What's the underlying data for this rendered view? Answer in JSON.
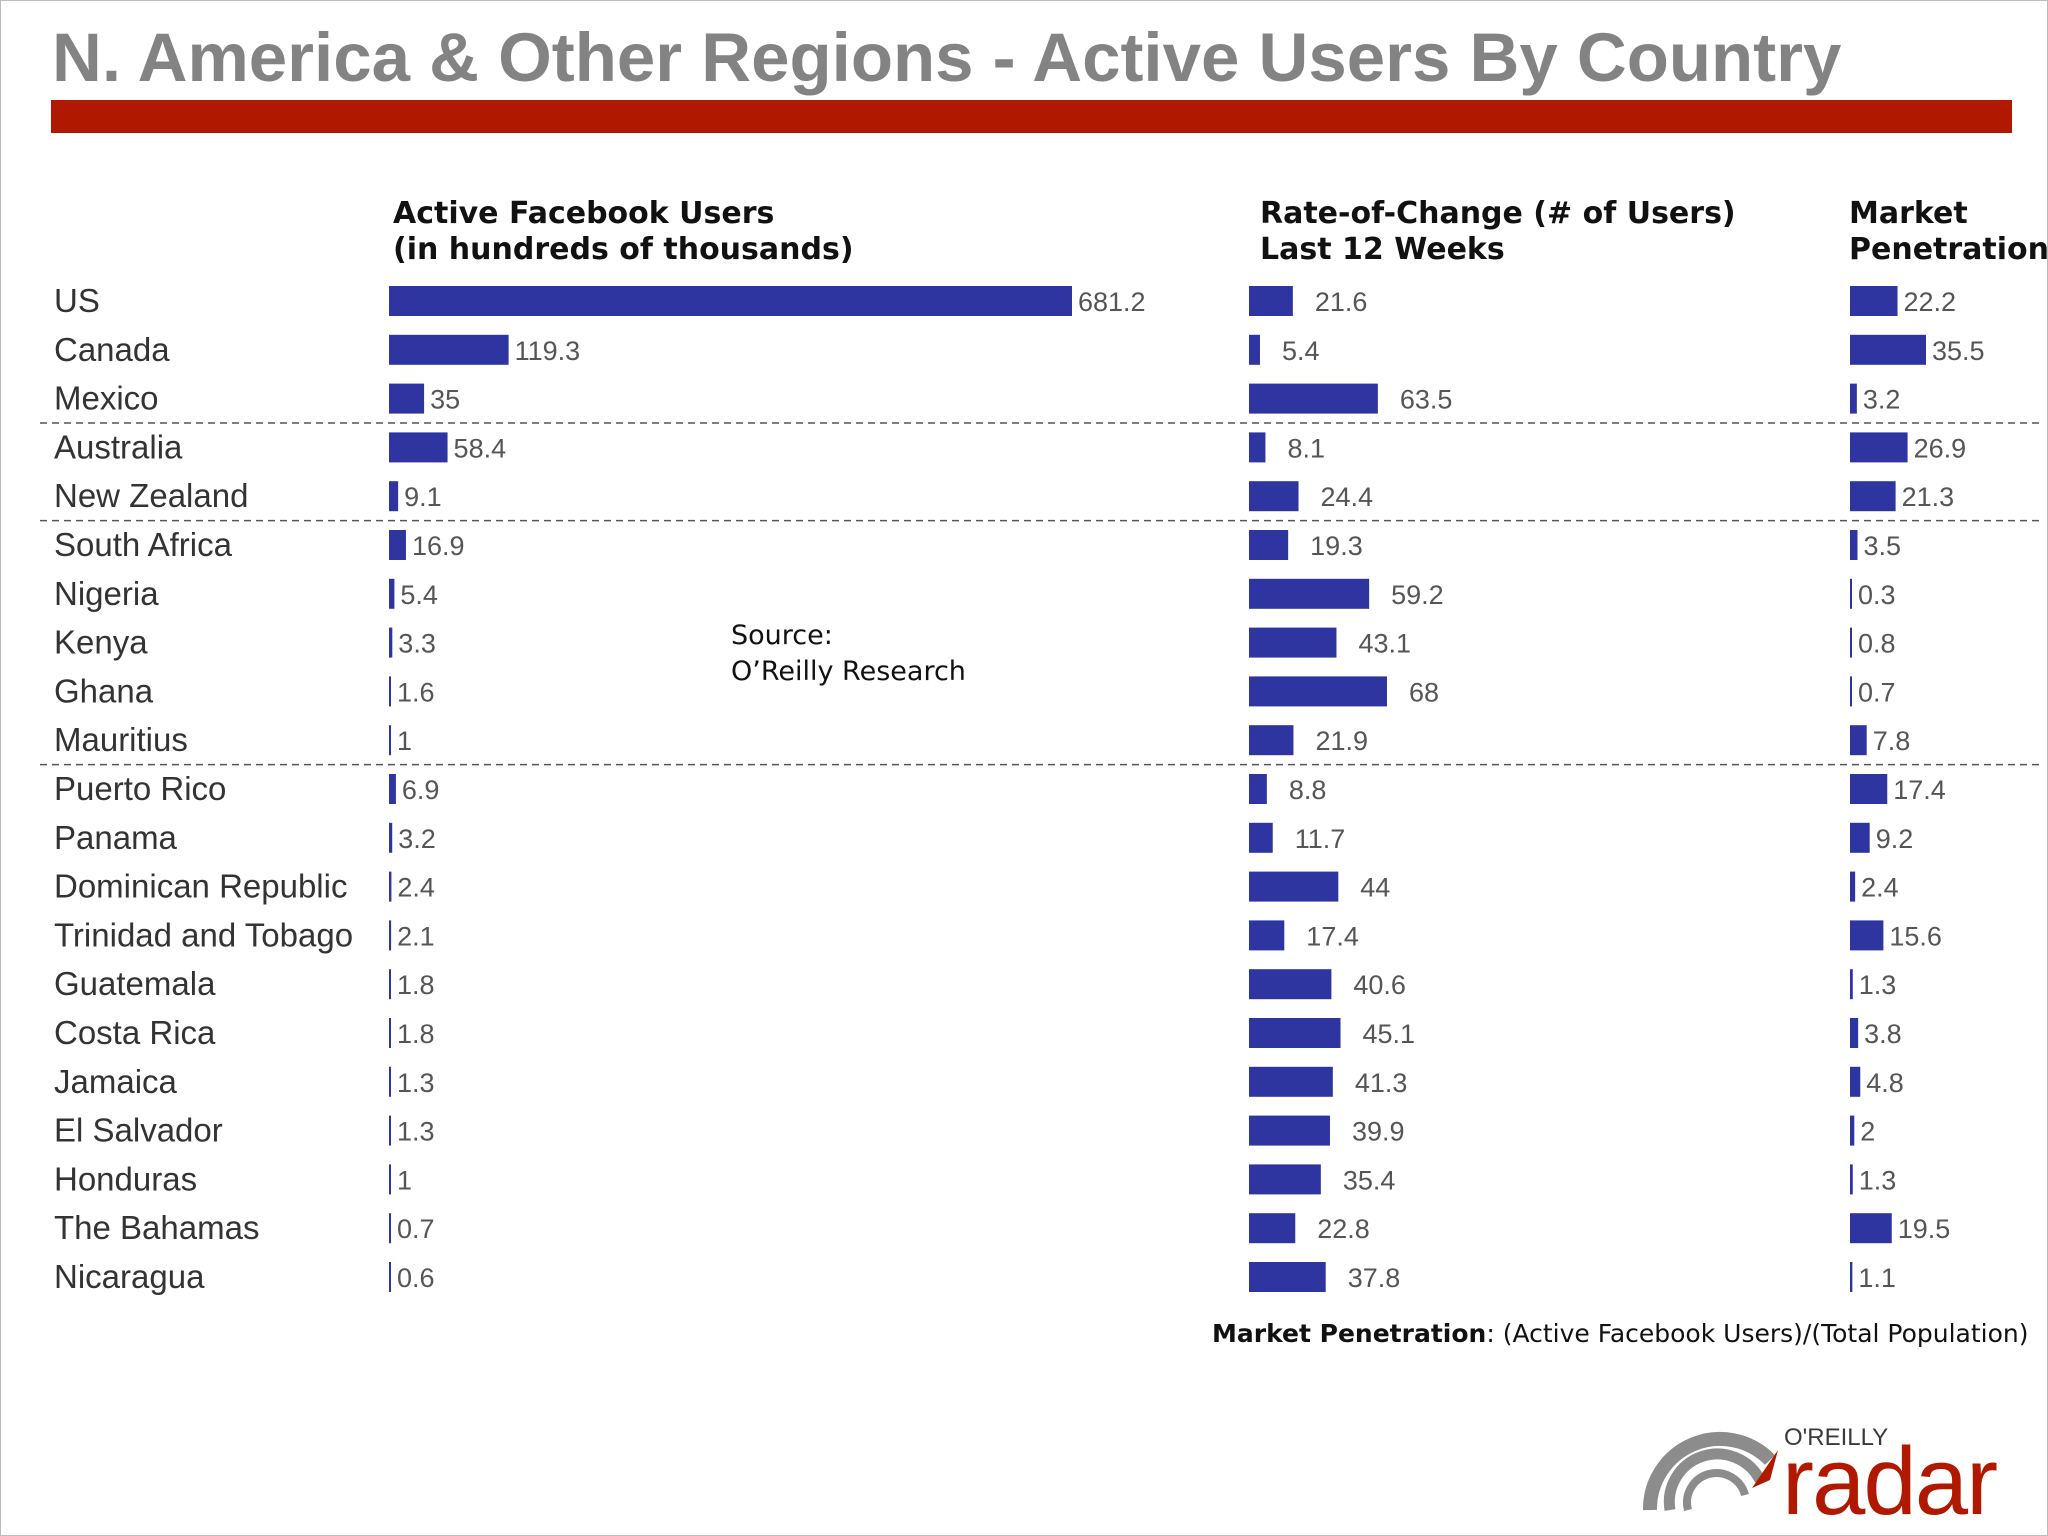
{
  "title": "N. America & Other Regions - Active Users By Country",
  "headers": {
    "users": [
      "Active Facebook Users",
      "(in hundreds of thousands)"
    ],
    "change": [
      "Rate-of-Change (# of Users)",
      "Last 12 Weeks"
    ],
    "penetration": [
      "Market",
      "Penetration"
    ]
  },
  "source": [
    "Source:",
    "O’Reilly Research"
  ],
  "footnote": {
    "bold": "Market Penetration",
    "text": ":  (Active Facebook Users)/(Total Population)"
  },
  "logo": {
    "brand": "O'REILLY",
    "word": "radar"
  },
  "colors": {
    "bar": "#2e35a0",
    "title": "#838383",
    "accent": "#b11800"
  },
  "chart_data": {
    "type": "bar",
    "orientation": "horizontal",
    "categories": [
      "US",
      "Canada",
      "Mexico",
      "Australia",
      "New Zealand",
      "South Africa",
      "Nigeria",
      "Kenya",
      "Ghana",
      "Mauritius",
      "Puerto Rico",
      "Panama",
      "Dominican Republic",
      "Trinidad and Tobago",
      "Guatemala",
      "Costa Rica",
      "Jamaica",
      "El Salvador",
      "Honduras",
      "The Bahamas",
      "Nicaragua"
    ],
    "group_breaks_after": [
      "Mexico",
      "New Zealand",
      "Mauritius"
    ],
    "series": [
      {
        "name": "Active Facebook Users (in hundreds of thousands)",
        "values": [
          681.2,
          119.3,
          35,
          58.4,
          9.1,
          16.9,
          5.4,
          3.3,
          1.6,
          1,
          6.9,
          3.2,
          2.4,
          2.1,
          1.8,
          1.8,
          1.3,
          1.3,
          1,
          0.7,
          0.6
        ],
        "labels": [
          "681.2",
          "119.3",
          "35",
          "58.4",
          "9.1",
          "16.9",
          "5.4",
          "3.3",
          "1.6",
          "1",
          "6.9",
          "3.2",
          "2.4",
          "2.1",
          "1.8",
          "1.8",
          "1.3",
          "1.3",
          "1",
          "0.7",
          "0.6"
        ]
      },
      {
        "name": "Rate-of-Change (# of Users) Last 12 Weeks",
        "values": [
          21.6,
          5.4,
          63.5,
          8.1,
          24.4,
          19.3,
          59.2,
          43.1,
          68,
          21.9,
          8.8,
          11.7,
          44,
          17.4,
          40.6,
          45.1,
          41.3,
          39.9,
          35.4,
          22.8,
          37.8
        ],
        "labels": [
          "21.6",
          "5.4",
          "63.5",
          "8.1",
          "24.4",
          "19.3",
          "59.2",
          "43.1",
          "68",
          "21.9",
          "8.8",
          "11.7",
          "44",
          "17.4",
          "40.6",
          "45.1",
          "41.3",
          "39.9",
          "35.4",
          "22.8",
          "37.8"
        ]
      },
      {
        "name": "Market Penetration",
        "values": [
          22.2,
          35.5,
          3.2,
          26.9,
          21.3,
          3.5,
          0.3,
          0.8,
          0.7,
          7.8,
          17.4,
          9.2,
          2.4,
          15.6,
          1.3,
          3.8,
          4.8,
          2,
          1.3,
          19.5,
          1.1
        ],
        "labels": [
          "22.2",
          "35.5",
          "3.2",
          "26.9",
          "21.3",
          "3.5",
          "0.3",
          "0.8",
          "0.7",
          "7.8",
          "17.4",
          "9.2",
          "2.4",
          "15.6",
          "1.3",
          "3.8",
          "4.8",
          "2",
          "1.3",
          "19.5",
          "1.1"
        ]
      }
    ],
    "grid": false,
    "legend": "none"
  }
}
